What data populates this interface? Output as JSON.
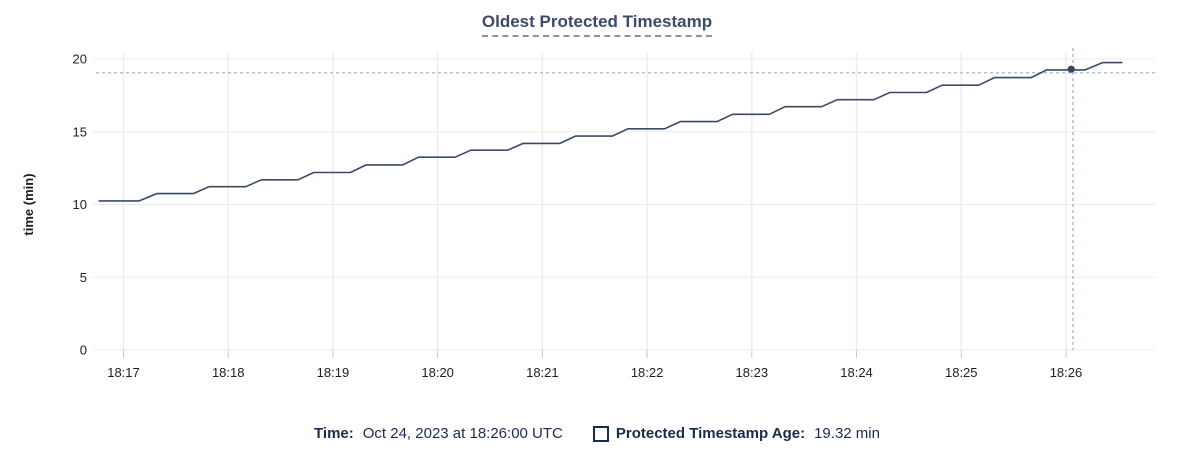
{
  "title": "Oldest Protected Timestamp",
  "colors": {
    "line": "#3a4a66",
    "hover_dot": "#364560",
    "crosshair": "#9db1bd",
    "h_gridline": "#ececec",
    "v_gridline": "#ededed",
    "tick_mark": "#c9c9c9",
    "title_text": "#3d4c66",
    "legend_text": "#1b2b4e"
  },
  "chart_data": {
    "type": "line",
    "title": "Oldest Protected Timestamp",
    "xlabel": "",
    "ylabel": "time (min)",
    "ylim": [
      0,
      20
    ],
    "grid": true,
    "y_ticks": [
      0,
      5,
      10,
      15,
      20
    ],
    "x_ticks": [
      {
        "t": 0,
        "label": "18:17"
      },
      {
        "t": 60,
        "label": "18:18"
      },
      {
        "t": 120,
        "label": "18:19"
      },
      {
        "t": 180,
        "label": "18:20"
      },
      {
        "t": 240,
        "label": "18:21"
      },
      {
        "t": 300,
        "label": "18:22"
      },
      {
        "t": 360,
        "label": "18:23"
      },
      {
        "t": 420,
        "label": "18:24"
      },
      {
        "t": 480,
        "label": "18:25"
      },
      {
        "t": 540,
        "label": "18:26"
      }
    ],
    "x_unit": "seconds after 18:17 UTC",
    "series": [
      {
        "name": "Protected Timestamp Age",
        "unit": "min",
        "points": [
          [
            -14,
            10.25
          ],
          [
            9,
            10.25
          ],
          [
            19,
            10.75
          ],
          [
            40,
            10.75
          ],
          [
            49,
            11.22
          ],
          [
            70,
            11.22
          ],
          [
            79,
            11.7
          ],
          [
            100,
            11.7
          ],
          [
            109,
            12.2
          ],
          [
            130,
            12.2
          ],
          [
            139,
            12.72
          ],
          [
            160,
            12.72
          ],
          [
            169,
            13.25
          ],
          [
            190,
            13.25
          ],
          [
            199,
            13.73
          ],
          [
            220,
            13.73
          ],
          [
            229,
            14.2
          ],
          [
            250,
            14.2
          ],
          [
            259,
            14.7
          ],
          [
            280,
            14.7
          ],
          [
            289,
            15.2
          ],
          [
            310,
            15.2
          ],
          [
            319,
            15.7
          ],
          [
            340,
            15.7
          ],
          [
            349,
            16.2
          ],
          [
            370,
            16.2
          ],
          [
            379,
            16.72
          ],
          [
            400,
            16.72
          ],
          [
            409,
            17.2
          ],
          [
            430,
            17.2
          ],
          [
            439,
            17.7
          ],
          [
            460,
            17.7
          ],
          [
            469,
            18.2
          ],
          [
            490,
            18.2
          ],
          [
            499,
            18.72
          ],
          [
            520,
            18.72
          ],
          [
            529,
            19.25
          ],
          [
            551,
            19.25
          ],
          [
            561,
            19.75
          ],
          [
            572,
            19.75
          ]
        ]
      }
    ],
    "crosshair": {
      "hover_t": 543,
      "hover_value": 19.3,
      "hline_value": 19.05,
      "vline_t": 544
    },
    "legend_position": "bottom"
  },
  "legend": {
    "time_label": "Time:",
    "time_value": "Oct 24, 2023 at 18:26:00 UTC",
    "series_label": "Protected Timestamp Age:",
    "series_value": "19.32 min"
  }
}
